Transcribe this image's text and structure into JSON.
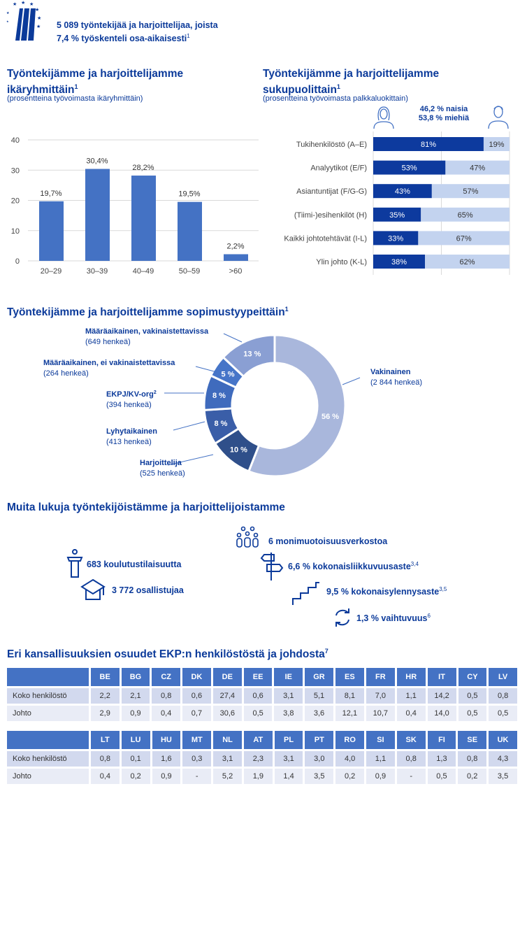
{
  "header": {
    "line1": "5 089 työntekijää ja harjoittelijaa, joista",
    "line2": "7,4 %  työskenteli osa-aikaisesti",
    "sup": "1"
  },
  "colors": {
    "primary": "#0b3a9a",
    "bar": "#4472c4",
    "women": "#0d3a9e",
    "men": "#c3d3ef"
  },
  "chart_data": [
    {
      "type": "bar",
      "title": "Työntekijämme ja harjoittelijamme ikäryhmittäin",
      "title_sup": "1",
      "subtitle": "(prosentteina työvoimasta ikäryhmittäin)",
      "categories": [
        "20–29",
        "30–39",
        "40–49",
        "50–59",
        ">60"
      ],
      "values": [
        19.7,
        30.4,
        28.2,
        19.5,
        2.2
      ],
      "labels": [
        "19,7%",
        "30,4%",
        "28,2%",
        "19,5%",
        "2,2%"
      ],
      "ylim": [
        0,
        40
      ],
      "yticks": [
        "0",
        "10",
        "20",
        "30",
        "40"
      ],
      "grid": true
    },
    {
      "type": "bar",
      "orientation": "horizontal-stacked",
      "title": "Työntekijämme ja harjoittelijamme sukupuolittain",
      "title_sup": "1",
      "subtitle": "(prosentteina työvoimasta palkkaluokittain)",
      "summary_women": "46,2 %  naisia",
      "summary_men": "53,8 %  miehiä",
      "categories": [
        "Tukihenkilöstö (A–E)",
        "Analyytikot (E/F)",
        "Asiantuntijat (F/G-G)",
        "(Tiimi-)esihenkilöt (H)",
        "Kaikki johtotehtävät (I-L)",
        "Ylin johto (K-L)"
      ],
      "series": [
        {
          "name": "naisia",
          "values": [
            81,
            53,
            43,
            35,
            33,
            38
          ]
        },
        {
          "name": "miehiä",
          "values": [
            19,
            47,
            57,
            65,
            67,
            62
          ]
        }
      ]
    },
    {
      "type": "pie",
      "title": "Työntekijämme ja harjoittelijamme sopimustyypeittäin",
      "title_sup": "1",
      "slices": [
        {
          "name": "Vakinainen",
          "count": "(2 844 henkeä)",
          "value": 56,
          "label": "56 %",
          "color": "#a9b7dc"
        },
        {
          "name": "Harjoittelija",
          "count": "(525 henkeä)",
          "value": 10,
          "label": "10 %",
          "color": "#2f4f8a"
        },
        {
          "name": "Lyhytaikainen",
          "count": "(413 henkeä)",
          "value": 8,
          "label": "8 %",
          "color": "#3a5ea8"
        },
        {
          "name": "EKPJ/KV-org",
          "name_sup": "2",
          "count": "(394 henkeä)",
          "value": 8,
          "label": "8 %",
          "color": "#3f6bbd"
        },
        {
          "name": "Määräaikainen, ei vakinaistettavissa",
          "count": "(264 henkeä)",
          "value": 5,
          "label": "5 %",
          "color": "#4675c8"
        },
        {
          "name": "Määräaikainen, vakinaistettavissa",
          "count": "(649 henkeä)",
          "value": 13,
          "label": "13 %",
          "color": "#8a9fd3"
        }
      ]
    },
    {
      "type": "table",
      "title": "Eri kansallisuuksien osuudet EKP:n henkilöstöstä ja johdosta",
      "title_sup": "7",
      "row_labels": [
        "Koko henkilöstö",
        "Johto"
      ],
      "blocks": [
        {
          "columns": [
            "BE",
            "BG",
            "CZ",
            "DK",
            "DE",
            "EE",
            "IE",
            "GR",
            "ES",
            "FR",
            "HR",
            "IT",
            "CY",
            "LV"
          ],
          "rows": [
            [
              "2,2",
              "2,1",
              "0,8",
              "0,6",
              "27,4",
              "0,6",
              "3,1",
              "5,1",
              "8,1",
              "7,0",
              "1,1",
              "14,2",
              "0,5",
              "0,8"
            ],
            [
              "2,9",
              "0,9",
              "0,4",
              "0,7",
              "30,6",
              "0,5",
              "3,8",
              "3,6",
              "12,1",
              "10,7",
              "0,4",
              "14,0",
              "0,5",
              "0,5"
            ]
          ]
        },
        {
          "columns": [
            "LT",
            "LU",
            "HU",
            "MT",
            "NL",
            "AT",
            "PL",
            "PT",
            "RO",
            "SI",
            "SK",
            "FI",
            "SE",
            "UK"
          ],
          "rows": [
            [
              "0,8",
              "0,1",
              "1,6",
              "0,3",
              "3,1",
              "2,3",
              "3,1",
              "3,0",
              "4,0",
              "1,1",
              "0,8",
              "1,3",
              "0,8",
              "4,3"
            ],
            [
              "0,4",
              "0,2",
              "0,9",
              "-",
              "5,2",
              "1,9",
              "1,4",
              "3,5",
              "0,2",
              "0,9",
              "-",
              "0,5",
              "0,2",
              "3,5"
            ]
          ]
        }
      ]
    }
  ],
  "other": {
    "title": "Muita lukuja työntekijöistämme ja harjoittelijoistamme",
    "stats": [
      {
        "icon": "lectern-icon",
        "text": "683 koulutustilaisuutta",
        "sup": ""
      },
      {
        "icon": "graduation-cap-icon",
        "text": "3 772 osallistujaa",
        "sup": ""
      },
      {
        "icon": "people-group-icon",
        "text": "6 monimuotoisuusverkostoa",
        "sup": ""
      },
      {
        "icon": "signpost-icon",
        "text": "6,6 %  kokonaisliikkuvuusaste",
        "sup": "3,4"
      },
      {
        "icon": "stairs-icon",
        "text": "9,5 %  kokonaisylennysaste",
        "sup": "3,5"
      },
      {
        "icon": "rotate-arrows-icon",
        "text": "1,3 %  vaihtuvuus",
        "sup": "6"
      }
    ]
  }
}
